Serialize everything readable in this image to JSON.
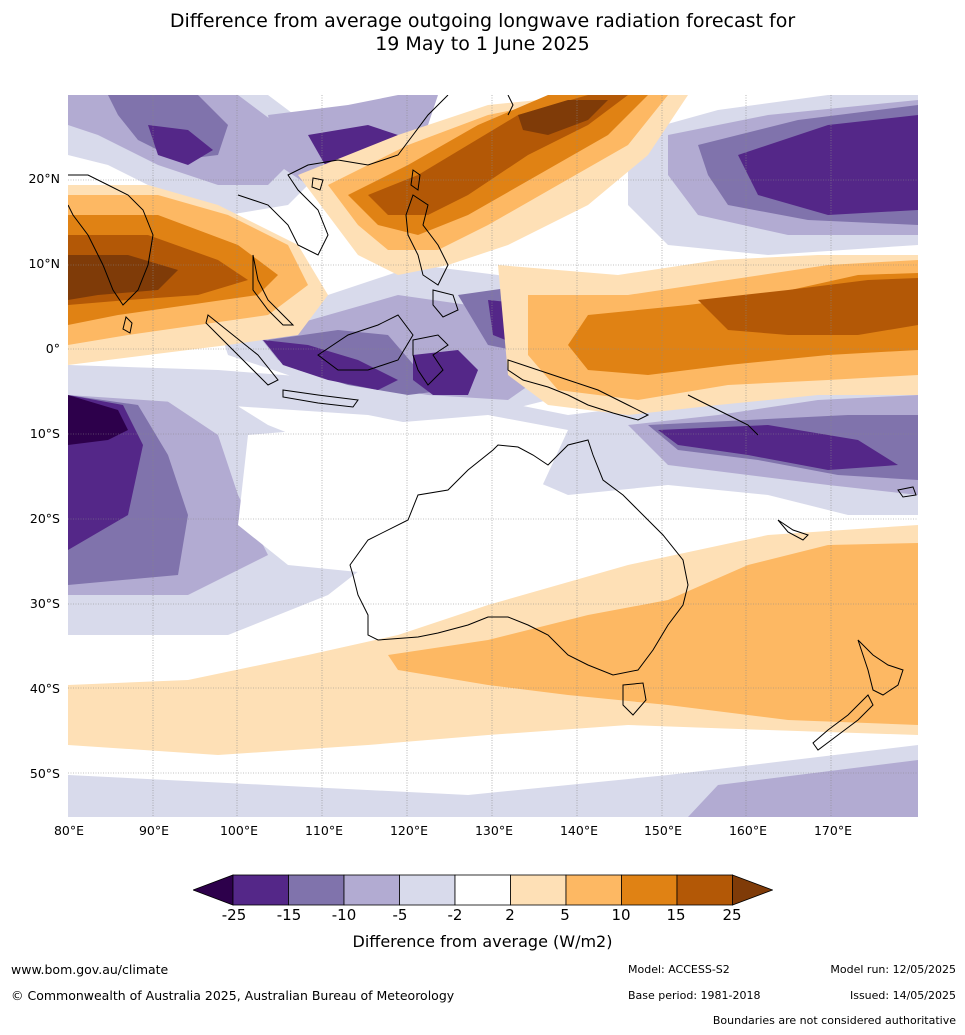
{
  "title_line1": "Difference from average outgoing longwave radiation forecast for",
  "title_line2": "19 May to 1 June 2025",
  "lat_labels": [
    "20°N",
    "10°N",
    "0°",
    "10°S",
    "20°S",
    "30°S",
    "40°S",
    "50°S"
  ],
  "lon_labels": [
    "80°E",
    "90°E",
    "100°E",
    "110°E",
    "120°E",
    "130°E",
    "140°E",
    "150°E",
    "160°E",
    "170°E"
  ],
  "colorbar": {
    "ticks": [
      "-25",
      "-15",
      "-10",
      "-5",
      "-2",
      "2",
      "5",
      "10",
      "15",
      "25"
    ],
    "colors": [
      "#2d004b",
      "#542788",
      "#8073ac",
      "#b2abd2",
      "#d8daeb",
      "#ffffff",
      "#fee0b6",
      "#fdb863",
      "#e08214",
      "#b35806",
      "#7f3b08"
    ],
    "label": "Difference from average (W/m2)"
  },
  "footer": {
    "website": "www.bom.gov.au/climate",
    "copyright": "© Commonwealth of Australia 2025, Australian Bureau of Meteorology",
    "model": "Model: ACCESS-S2",
    "base_period": "Base period: 1981-2018",
    "model_run": "Model run: 12/05/2025",
    "issued": "Issued: 14/05/2025",
    "disclaimer": "Boundaries are not considered authoritative"
  }
}
